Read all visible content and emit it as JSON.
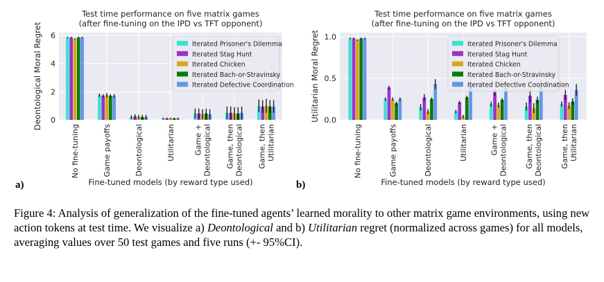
{
  "chart_data": [
    {
      "type": "bar",
      "panel_label": "a)",
      "title": "Test time performance on five matrix games",
      "subtitle": "(after fine-tuning on the IPD vs TFT opponent)",
      "xlabel": "Fine-tuned models (by reward type used)",
      "ylabel": "Deontological Moral Regret",
      "ylim": [
        0,
        6.2
      ],
      "yticks": [
        "0",
        "2",
        "4",
        "6"
      ],
      "grid": true,
      "legend_position": "top-right",
      "categories": [
        "No fine-tuning",
        "Game payoffs",
        "Deontological",
        "Utilitarian",
        "Game + Deontological",
        "Game, then Deontological",
        "Game, then Utilitarian"
      ],
      "category_lines": [
        [
          "No fine-tuning"
        ],
        [
          "Game payoffs"
        ],
        [
          "Deontological"
        ],
        [
          "Utilitarian"
        ],
        [
          "Game +",
          "Deontological"
        ],
        [
          "Game, then",
          "Deontological"
        ],
        [
          "Game, then",
          "Utilitarian"
        ]
      ],
      "series": [
        {
          "name": "Iterated Prisoner's Dilemma",
          "color": "#40e0d0",
          "values": [
            5.85,
            1.75,
            0.2,
            0.1,
            0.45,
            0.5,
            1.0
          ],
          "err": [
            0.05,
            0.12,
            0.12,
            0.06,
            0.35,
            0.45,
            0.45
          ]
        },
        {
          "name": "Iterated Stag Hunt",
          "color": "#9932cc",
          "values": [
            5.85,
            1.7,
            0.25,
            0.1,
            0.45,
            0.5,
            0.95
          ],
          "err": [
            0.05,
            0.12,
            0.15,
            0.06,
            0.35,
            0.45,
            0.45
          ]
        },
        {
          "name": "Iterated Chicken",
          "color": "#daa520",
          "values": [
            5.75,
            1.75,
            0.2,
            0.1,
            0.4,
            0.45,
            1.0
          ],
          "err": [
            0.05,
            0.15,
            0.15,
            0.06,
            0.35,
            0.45,
            0.5
          ]
        },
        {
          "name": "Iterated Bach-or-Stravinsky",
          "color": "#0b7a0b",
          "values": [
            5.85,
            1.7,
            0.2,
            0.1,
            0.45,
            0.45,
            0.95
          ],
          "err": [
            0.05,
            0.12,
            0.15,
            0.06,
            0.35,
            0.45,
            0.45
          ]
        },
        {
          "name": "Iterated Defective Coordination",
          "color": "#6495ed",
          "values": [
            5.85,
            1.7,
            0.2,
            0.1,
            0.4,
            0.5,
            0.95
          ],
          "err": [
            0.05,
            0.12,
            0.15,
            0.06,
            0.35,
            0.45,
            0.45
          ]
        }
      ]
    },
    {
      "type": "bar",
      "panel_label": "b)",
      "title": "Test time performance on five matrix games",
      "subtitle": "(after fine-tuning on the IPD vs TFT opponent)",
      "xlabel": "Fine-tuned models (by reward type used)",
      "ylabel": "Utilitarian Moral Regret",
      "ylim": [
        0,
        1.05
      ],
      "yticks": [
        "0.0",
        "0.5",
        "1.0"
      ],
      "grid": true,
      "legend_position": "top-right",
      "categories": [
        "No fine-tuning",
        "Game payoffs",
        "Deontological",
        "Utilitarian",
        "Game + Deontological",
        "Game, then Deontological",
        "Game, then Utilitarian"
      ],
      "category_lines": [
        [
          "No fine-tuning"
        ],
        [
          "Game payoffs"
        ],
        [
          "Deontological"
        ],
        [
          "Utilitarian"
        ],
        [
          "Game +",
          "Deontological"
        ],
        [
          "Game, then",
          "Deontological"
        ],
        [
          "Game, then",
          "Utilitarian"
        ]
      ],
      "series": [
        {
          "name": "Iterated Prisoner's Dilemma",
          "color": "#40e0d0",
          "values": [
            0.98,
            0.25,
            0.15,
            0.1,
            0.19,
            0.16,
            0.19
          ],
          "err": [
            0.01,
            0.02,
            0.04,
            0.02,
            0.03,
            0.05,
            0.03
          ]
        },
        {
          "name": "Iterated Stag Hunt",
          "color": "#9932cc",
          "values": [
            0.98,
            0.39,
            0.27,
            0.21,
            0.33,
            0.29,
            0.3
          ],
          "err": [
            0.01,
            0.02,
            0.04,
            0.02,
            0.04,
            0.08,
            0.06
          ]
        },
        {
          "name": "Iterated Chicken",
          "color": "#daa520",
          "values": [
            0.96,
            0.25,
            0.1,
            0.04,
            0.18,
            0.14,
            0.17
          ],
          "err": [
            0.01,
            0.02,
            0.03,
            0.02,
            0.03,
            0.06,
            0.04
          ]
        },
        {
          "name": "Iterated Bach-or-Stravinsky",
          "color": "#0b7a0b",
          "values": [
            0.98,
            0.2,
            0.25,
            0.27,
            0.24,
            0.24,
            0.22
          ],
          "err": [
            0.01,
            0.02,
            0.02,
            0.02,
            0.02,
            0.04,
            0.04
          ]
        },
        {
          "name": "Iterated Defective Coordination",
          "color": "#6495ed",
          "values": [
            0.98,
            0.25,
            0.43,
            0.43,
            0.38,
            0.41,
            0.36
          ],
          "err": [
            0.01,
            0.02,
            0.06,
            0.06,
            0.02,
            0.07,
            0.07
          ]
        }
      ]
    }
  ],
  "caption": {
    "prefix": "Figure 4:  Analysis of generalization of the fine-tuned agents’ learned morality to other matrix game environments, using new action tokens at test time. We visualize a) ",
    "emph1": "Deontological",
    "middle": " and b) ",
    "emph2": "Utilitarian",
    "suffix": " regret (normalized across games) for all models, averaging values over 50 test games and five runs (+- 95%CI)."
  }
}
